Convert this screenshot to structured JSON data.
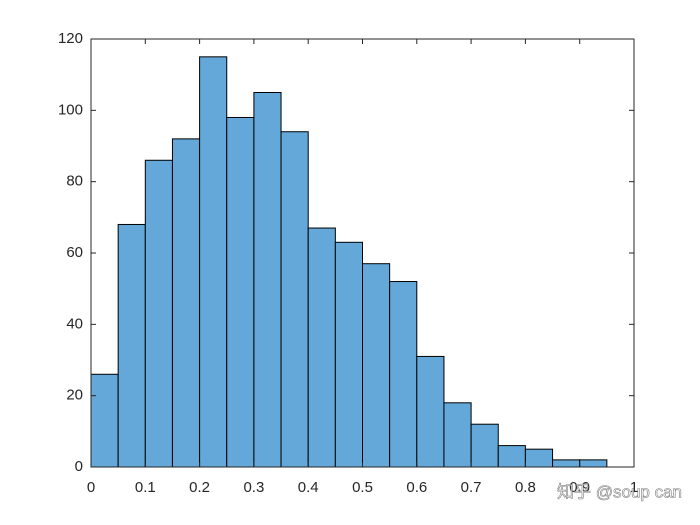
{
  "chart_data": {
    "type": "histogram",
    "bins": [
      0,
      0.05,
      0.1,
      0.15,
      0.2,
      0.25,
      0.3,
      0.35,
      0.4,
      0.45,
      0.5,
      0.55,
      0.6,
      0.65,
      0.7,
      0.75,
      0.8,
      0.85,
      0.9,
      0.95
    ],
    "values": [
      26,
      68,
      86,
      92,
      115,
      98,
      105,
      94,
      67,
      63,
      57,
      52,
      31,
      18,
      12,
      6,
      5,
      2,
      2
    ],
    "color": "#63a8d9",
    "edgecolor": "#000000",
    "xlim": [
      0,
      1
    ],
    "xticks": [
      0,
      0.1,
      0.2,
      0.3,
      0.4,
      0.5,
      0.6,
      0.7,
      0.8,
      0.9,
      1
    ],
    "ylim": [
      0,
      120
    ],
    "yticks": [
      0,
      20,
      40,
      60,
      80,
      100,
      120
    ],
    "watermark": "知乎 @soup can"
  }
}
